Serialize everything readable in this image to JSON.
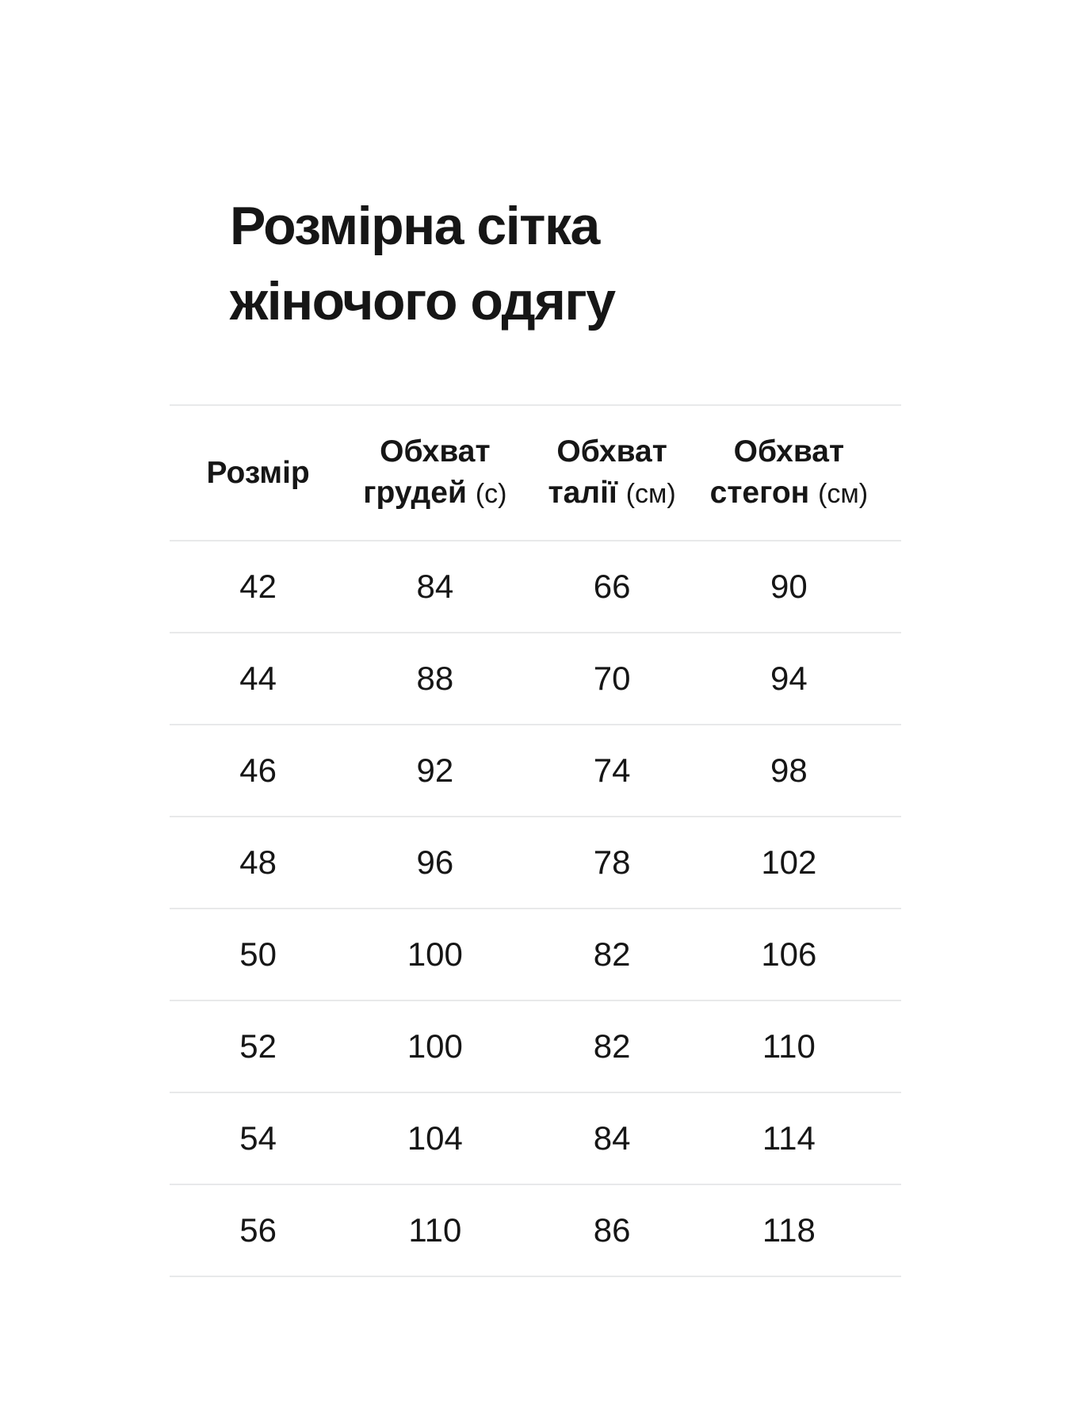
{
  "title": {
    "line1": "Розмірна сітка",
    "line2": "жіночого одягу"
  },
  "table": {
    "columns": [
      {
        "line1": "Розмір",
        "line2": "",
        "unit": ""
      },
      {
        "line1": "Обхват",
        "line2": "грудей",
        "unit": "(с)"
      },
      {
        "line1": "Обхват",
        "line2": "талії",
        "unit": "(см)"
      },
      {
        "line1": "Обхват",
        "line2": "стегон",
        "unit": "(см)"
      }
    ],
    "rows": [
      [
        "42",
        "84",
        "66",
        "90"
      ],
      [
        "44",
        "88",
        "70",
        "94"
      ],
      [
        "46",
        "92",
        "74",
        "98"
      ],
      [
        "48",
        "96",
        "78",
        "102"
      ],
      [
        "50",
        "100",
        "82",
        "106"
      ],
      [
        "52",
        "100",
        "82",
        "110"
      ],
      [
        "54",
        "104",
        "84",
        "114"
      ],
      [
        "56",
        "110",
        "86",
        "118"
      ]
    ]
  },
  "colors": {
    "text": "#161616",
    "rule": "#e8e9ea",
    "background": "#ffffff"
  }
}
